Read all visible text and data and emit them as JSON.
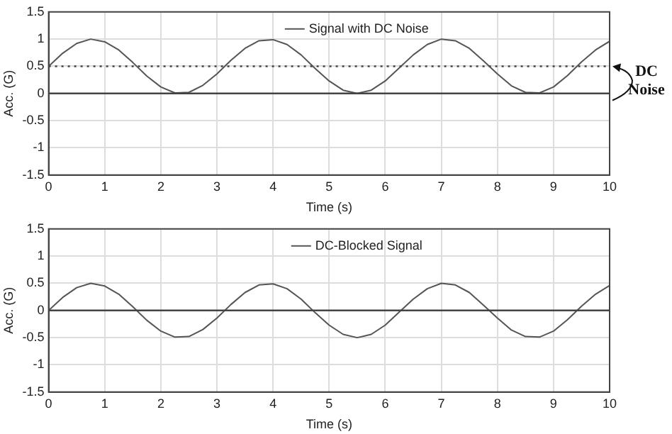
{
  "chart_data": [
    {
      "type": "line",
      "xlabel": "Time (s)",
      "ylabel": "Acc. (G)",
      "x": [
        0,
        0.25,
        0.5,
        0.75,
        1,
        1.25,
        1.5,
        1.75,
        2,
        2.25,
        2.5,
        2.75,
        3,
        3.25,
        3.5,
        3.75,
        4,
        4.25,
        4.5,
        4.75,
        5,
        5.25,
        5.5,
        5.75,
        6,
        6.25,
        6.5,
        6.75,
        7,
        7.25,
        7.5,
        7.75,
        8,
        8.25,
        8.5,
        8.75,
        9,
        9.25,
        9.5,
        9.75,
        10
      ],
      "series": [
        {
          "name": "Signal with DC Noise",
          "color": "#555555",
          "values": [
            0.5,
            0.74,
            0.92,
            1,
            0.95,
            0.8,
            0.57,
            0.32,
            0.12,
            0.01,
            0.02,
            0.15,
            0.36,
            0.61,
            0.83,
            0.97,
            0.99,
            0.9,
            0.71,
            0.46,
            0.23,
            0.06,
            0,
            0.06,
            0.23,
            0.47,
            0.71,
            0.9,
            1,
            0.97,
            0.83,
            0.6,
            0.36,
            0.14,
            0.02,
            0.01,
            0.12,
            0.33,
            0.58,
            0.8,
            0.96
          ]
        }
      ],
      "xlim": [
        0,
        10
      ],
      "xticks": [
        0,
        1,
        2,
        3,
        4,
        5,
        6,
        7,
        8,
        9,
        10
      ],
      "ylim": [
        -1.5,
        1.5
      ],
      "yticks": [
        -1.5,
        -1,
        -0.5,
        0,
        0.5,
        1,
        1.5
      ],
      "ref_lines": [
        {
          "axis": "y",
          "value": 0,
          "color": "#444444",
          "line_style": "solid"
        },
        {
          "axis": "y",
          "value": 0.5,
          "color": "#444444",
          "line_style": "dotted"
        }
      ],
      "annotations": [
        {
          "text": "DC Noise",
          "x": 10,
          "y": 0.5
        }
      ],
      "grid": true,
      "legend": "top",
      "marker": "none",
      "line_style": "solid"
    },
    {
      "type": "line",
      "xlabel": "Time (s)",
      "ylabel": "Acc. (G)",
      "x": [
        0,
        0.25,
        0.5,
        0.75,
        1,
        1.25,
        1.5,
        1.75,
        2,
        2.25,
        2.5,
        2.75,
        3,
        3.25,
        3.5,
        3.75,
        4,
        4.25,
        4.5,
        4.75,
        5,
        5.25,
        5.5,
        5.75,
        6,
        6.25,
        6.5,
        6.75,
        7,
        7.25,
        7.5,
        7.75,
        8,
        8.25,
        8.5,
        8.75,
        9,
        9.25,
        9.5,
        9.75,
        10
      ],
      "series": [
        {
          "name": "DC-Blocked Signal",
          "color": "#555555",
          "values": [
            0,
            0.24,
            0.42,
            0.5,
            0.45,
            0.3,
            0.07,
            -0.18,
            -0.38,
            -0.49,
            -0.48,
            -0.35,
            -0.14,
            0.11,
            0.33,
            0.47,
            0.49,
            0.4,
            0.21,
            -0.04,
            -0.27,
            -0.44,
            -0.5,
            -0.44,
            -0.27,
            -0.03,
            0.21,
            0.4,
            0.5,
            0.47,
            0.33,
            0.1,
            -0.14,
            -0.36,
            -0.48,
            -0.49,
            -0.38,
            -0.17,
            0.08,
            0.3,
            0.46
          ]
        }
      ],
      "xlim": [
        0,
        10
      ],
      "xticks": [
        0,
        1,
        2,
        3,
        4,
        5,
        6,
        7,
        8,
        9,
        10
      ],
      "ylim": [
        -1.5,
        1.5
      ],
      "yticks": [
        -1.5,
        -1,
        -0.5,
        0,
        0.5,
        1,
        1.5
      ],
      "ref_lines": [
        {
          "axis": "y",
          "value": 0,
          "color": "#444444",
          "line_style": "solid"
        }
      ],
      "grid": true,
      "legend": "top",
      "marker": "none",
      "line_style": "solid"
    }
  ]
}
